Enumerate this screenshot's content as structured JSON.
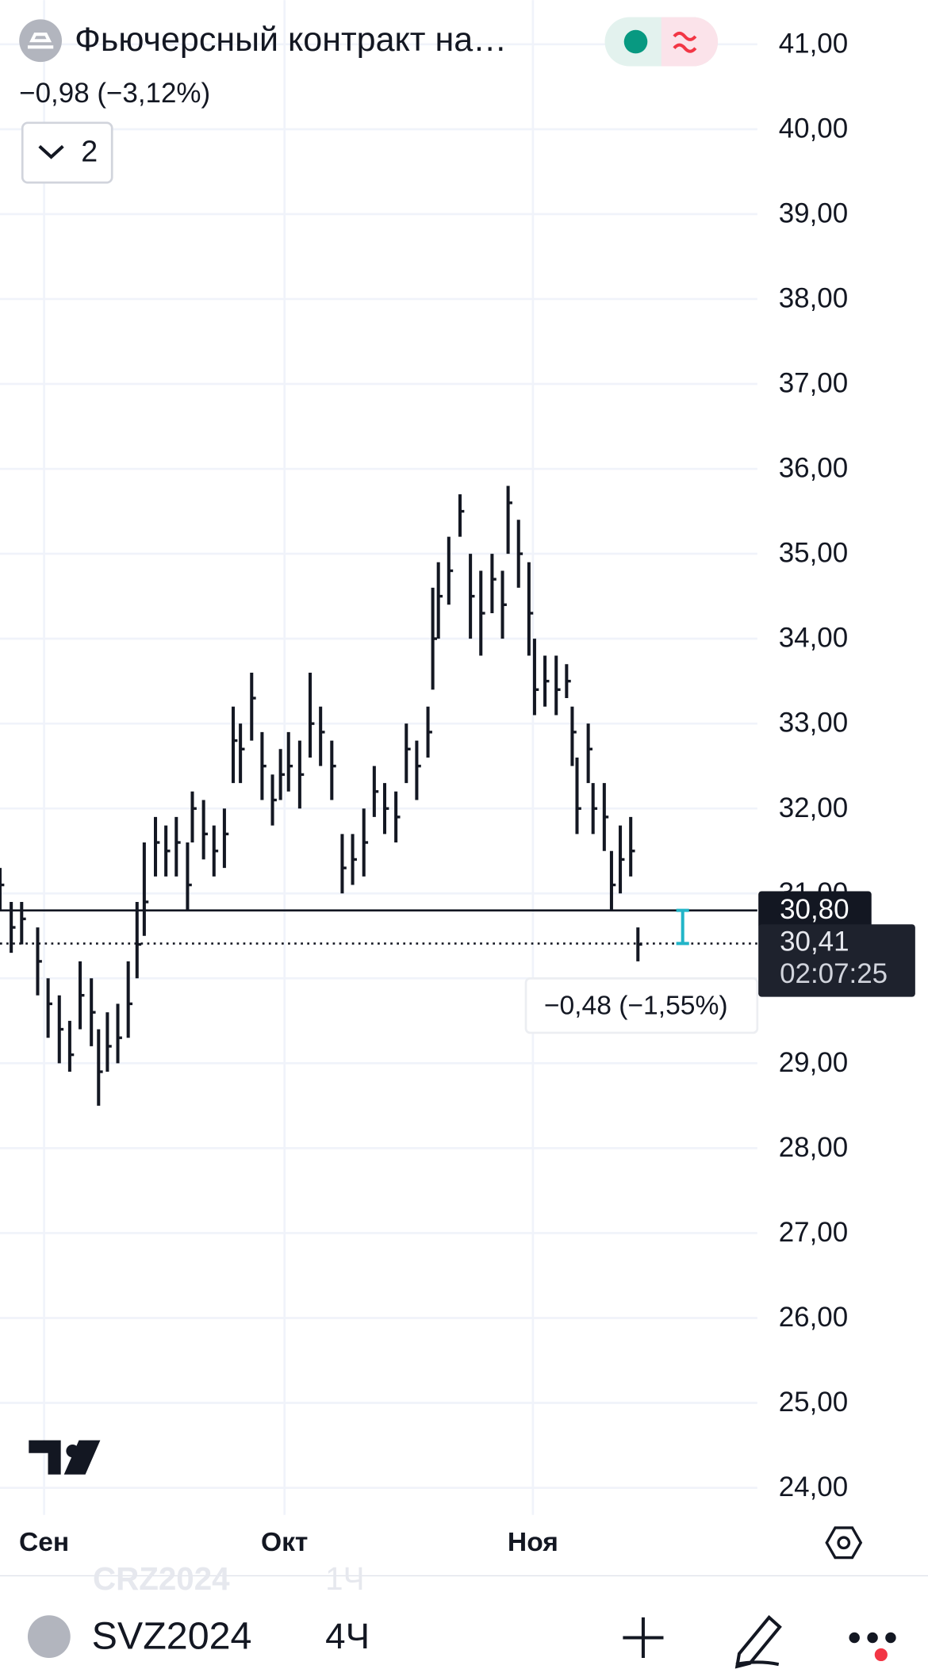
{
  "header": {
    "title": "Фьючерсный контракт на…",
    "change": "−0,98 (−3,12%)",
    "indicators_count": "2"
  },
  "chart_data": {
    "type": "ohlc",
    "color": "#131722",
    "x": [
      -5.5,
      -4.1,
      -2.8,
      -0.8,
      0.5,
      1.9,
      3.2,
      4.5,
      5.9,
      6.8,
      7.9,
      9.2,
      10.5,
      11.6,
      12.5,
      13.9,
      15.2,
      16.5,
      17.9,
      18.5,
      19.9,
      21.2,
      22.5,
      23.6,
      24.5,
      25.9,
      27.2,
      28.5,
      29.5,
      30.5,
      31.9,
      33.2,
      34.5,
      35.9,
      37.2,
      38.5,
      39.9,
      41.2,
      42.5,
      43.9,
      45.2,
      46.5,
      47.9,
      48.5,
      49.2,
      50.5,
      51.9,
      53.2,
      54.5,
      55.9,
      57.2,
      57.9,
      59.2,
      60.5,
      61.2,
      62.5,
      63.9,
      65.2,
      65.9,
      66.5,
      67.9,
      68.5,
      69.9,
      70.8,
      71.9,
      73.2,
      74.1
    ],
    "high": [
      31.3,
      30.9,
      30.9,
      30.6,
      30.0,
      29.8,
      29.5,
      30.2,
      30.0,
      29.4,
      29.6,
      29.7,
      30.2,
      30.9,
      31.6,
      31.9,
      31.8,
      31.9,
      31.6,
      32.2,
      32.1,
      31.8,
      32.0,
      33.2,
      33.0,
      33.6,
      32.9,
      32.4,
      32.7,
      32.9,
      32.8,
      33.6,
      33.2,
      32.8,
      31.7,
      31.7,
      32.0,
      32.5,
      32.3,
      32.2,
      33.0,
      32.8,
      33.2,
      34.6,
      34.9,
      35.2,
      35.7,
      35.0,
      34.8,
      35.0,
      34.8,
      35.8,
      35.4,
      34.9,
      34.0,
      33.8,
      33.8,
      33.7,
      33.2,
      32.6,
      33.0,
      32.3,
      32.3,
      31.5,
      31.8,
      31.9,
      30.6
    ],
    "low": [
      30.8,
      30.3,
      30.4,
      29.8,
      29.3,
      29.0,
      28.9,
      29.4,
      29.2,
      28.5,
      28.9,
      29.0,
      29.3,
      30.0,
      30.5,
      31.2,
      31.2,
      31.2,
      30.8,
      31.6,
      31.4,
      31.2,
      31.3,
      32.3,
      32.3,
      32.8,
      32.1,
      31.8,
      32.1,
      32.2,
      32.0,
      32.6,
      32.5,
      32.1,
      31.0,
      31.1,
      31.2,
      31.9,
      31.7,
      31.6,
      32.3,
      32.1,
      32.6,
      33.4,
      34.0,
      34.4,
      35.2,
      34.0,
      33.8,
      34.3,
      34.0,
      35.0,
      34.6,
      33.8,
      33.1,
      33.2,
      33.1,
      33.3,
      32.5,
      31.7,
      32.3,
      31.7,
      31.5,
      30.8,
      31.0,
      31.2,
      30.2
    ],
    "close": [
      31.1,
      30.6,
      30.7,
      30.2,
      29.7,
      29.4,
      29.1,
      29.8,
      29.6,
      28.9,
      29.2,
      29.3,
      29.7,
      30.4,
      30.9,
      31.6,
      31.5,
      31.6,
      31.1,
      32.0,
      31.7,
      31.5,
      31.7,
      32.8,
      32.7,
      33.3,
      32.5,
      32.1,
      32.4,
      32.5,
      32.4,
      33.0,
      32.9,
      32.5,
      31.3,
      31.4,
      31.6,
      32.2,
      32.0,
      31.9,
      32.7,
      32.5,
      32.9,
      34.0,
      34.5,
      34.8,
      35.5,
      34.5,
      34.3,
      34.7,
      34.4,
      35.6,
      35.0,
      34.3,
      33.4,
      33.5,
      33.4,
      33.5,
      32.9,
      32.0,
      32.7,
      32.0,
      31.9,
      31.1,
      31.4,
      31.5,
      30.4
    ],
    "xlim": [
      -5.5,
      89
    ],
    "xticks": [
      {
        "value": 0,
        "label": "Сен"
      },
      {
        "value": 30,
        "label": "Окт"
      },
      {
        "value": 61,
        "label": "Ноя"
      }
    ],
    "ylim": [
      23.68,
      41.52
    ],
    "yticks": [
      {
        "value": 24,
        "label": "24,00"
      },
      {
        "value": 25,
        "label": "25,00"
      },
      {
        "value": 26,
        "label": "26,00"
      },
      {
        "value": 27,
        "label": "27,00"
      },
      {
        "value": 28,
        "label": "28,00"
      },
      {
        "value": 29,
        "label": "29,00"
      },
      {
        "value": 30,
        "label": "30,00"
      },
      {
        "value": 31,
        "label": "31,00"
      },
      {
        "value": 32,
        "label": "32,00"
      },
      {
        "value": 33,
        "label": "33,00"
      },
      {
        "value": 34,
        "label": "34,00"
      },
      {
        "value": 35,
        "label": "35,00"
      },
      {
        "value": 36,
        "label": "36,00"
      },
      {
        "value": 37,
        "label": "37,00"
      },
      {
        "value": 38,
        "label": "38,00"
      },
      {
        "value": 39,
        "label": "39,00"
      },
      {
        "value": 40,
        "label": "40,00"
      },
      {
        "value": 41,
        "label": "41,00"
      }
    ],
    "grid": true,
    "price_line": {
      "value": 30.8,
      "label": "30,80"
    },
    "last_price": {
      "value": 30.41,
      "label": "30,41"
    },
    "countdown": "02:07:25",
    "measure_label": "−0,48 (−1,55%)"
  },
  "footer": {
    "symbol": "SVZ2024",
    "interval": "4Ч",
    "ghost_symbol": "CRZ2024",
    "ghost_interval": "1Ч"
  }
}
